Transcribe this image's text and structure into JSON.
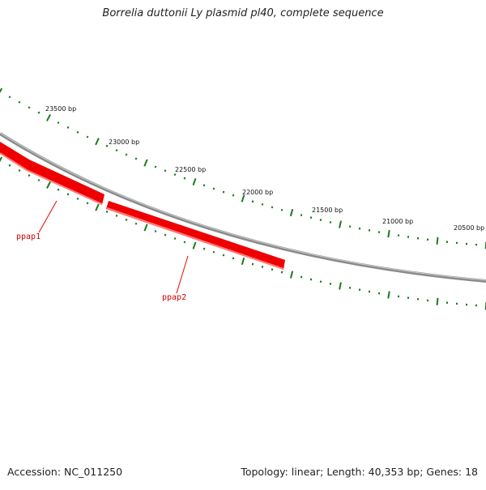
{
  "title": "Borrelia duttonii Ly plasmid pl40, complete sequence",
  "footer": {
    "accession": "Accession: NC_011250",
    "summary": "Topology: linear; Length: 40,353 bp; Genes: 18"
  },
  "colors": {
    "backbone": "#8a8a8a",
    "gene": "#ee0000",
    "gene_highlight": "#ff6f6f",
    "tick": "#1a7a1a",
    "gene_label": "#cc0000"
  },
  "scale_labels": [
    "23500 bp",
    "23000 bp",
    "22500 bp",
    "22000 bp",
    "21500 bp",
    "21000 bp",
    "20500 bp"
  ],
  "genes": [
    {
      "name": "ppap1",
      "strand": "minus"
    },
    {
      "name": "ppap2",
      "strand": "minus"
    }
  ]
}
